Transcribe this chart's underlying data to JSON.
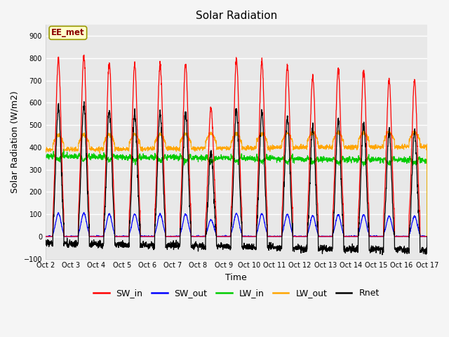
{
  "title": "Solar Radiation",
  "ylabel": "Solar Radiation (W/m2)",
  "xlabel": "Time",
  "ylim": [
    -100,
    950
  ],
  "yticks": [
    -100,
    0,
    100,
    200,
    300,
    400,
    500,
    600,
    700,
    800,
    900
  ],
  "xtick_labels": [
    "Oct 2",
    "Oct 3",
    "Oct 4",
    "Oct 5",
    "Oct 6",
    "Oct 7",
    "Oct 8",
    "Oct 9",
    "Oct 10",
    "Oct 11",
    "Oct 12",
    "Oct 13",
    "Oct 14",
    "Oct 15",
    "Oct 16",
    "Oct 17"
  ],
  "legend_entries": [
    "SW_in",
    "SW_out",
    "LW_in",
    "LW_out",
    "Rnet"
  ],
  "colors": {
    "SW_in": "#ff0000",
    "SW_out": "#0000ff",
    "LW_in": "#00cc00",
    "LW_out": "#ffa500",
    "Rnet": "#000000"
  },
  "annotation_text": "EE_met",
  "annotation_box_facecolor": "#ffffcc",
  "annotation_box_edgecolor": "#999900",
  "annotation_text_color": "#8b0000",
  "plot_bg_color": "#e8e8e8",
  "fig_bg_color": "#f5f5f5",
  "grid_color": "#ffffff",
  "title_fontsize": 11,
  "tick_fontsize": 7,
  "axis_label_fontsize": 9,
  "legend_fontsize": 9
}
